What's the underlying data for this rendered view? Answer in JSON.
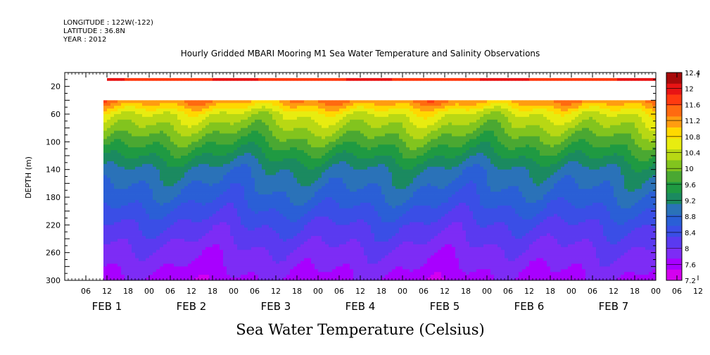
{
  "header": {
    "longitude": "LONGITUDE : 122W(-122)",
    "latitude": "LATITUDE : 36.8N",
    "year": "YEAR : 2012"
  },
  "chart_data": {
    "type": "heatmap",
    "title": "Hourly Gridded MBARI Mooring M1 Sea Water Temperature and Salinity Observations",
    "xlabel": "Sea Water Temperature (Celsius)",
    "ylabel": "DEPTH (m)",
    "x_axis": {
      "unit": "hours since 2012-02-01 00:00",
      "range": [
        0,
        168
      ],
      "hour_ticks": [
        "06",
        "12",
        "18",
        "00",
        "06",
        "12",
        "18",
        "00",
        "06",
        "12",
        "18",
        "00",
        "06",
        "12",
        "18",
        "00",
        "06",
        "12",
        "18",
        "00",
        "06",
        "12",
        "18",
        "00",
        "06",
        "12",
        "18",
        "00",
        "06",
        "12",
        "18"
      ],
      "day_labels": [
        "FEB  1",
        "FEB  2",
        "FEB  3",
        "FEB  4",
        "FEB  5",
        "FEB  6",
        "FEB  7"
      ]
    },
    "y_axis": {
      "range": [
        0,
        300
      ],
      "inverted": true,
      "tick_labels": [
        "20",
        "60",
        "100",
        "140",
        "180",
        "220",
        "260",
        "300"
      ]
    },
    "colorbar": {
      "levels": [
        "7.2",
        "7.6",
        "8",
        "8.4",
        "8.8",
        "9.2",
        "9.6",
        "10",
        "10.4",
        "10.8",
        "11.2",
        "11.6",
        "12",
        "12.4"
      ],
      "colors": [
        "#d400f0",
        "#a800ff",
        "#7d2cf5",
        "#5a3af0",
        "#3a4ee6",
        "#2a5fd6",
        "#2a72b8",
        "#1b8a60",
        "#1f9a42",
        "#4aa832",
        "#82c41e",
        "#b8d814",
        "#e8ec10",
        "#ffd800",
        "#ff9c10",
        "#ff6a10",
        "#ff3a10",
        "#e81414",
        "#a80a0a"
      ]
    },
    "surface_data_depth_m": 10,
    "profile_top_depth_m": 40,
    "data_start_hour": 11,
    "data_end_hour": 168,
    "description_series": [
      {
        "depth": 40,
        "temperature": 11.5
      },
      {
        "depth": 60,
        "temperature": 10.6
      },
      {
        "depth": 100,
        "temperature": 9.8
      },
      {
        "depth": 140,
        "temperature": 9.0
      },
      {
        "depth": 180,
        "temperature": 8.6
      },
      {
        "depth": 220,
        "temperature": 8.1
      },
      {
        "depth": 260,
        "temperature": 7.7
      },
      {
        "depth": 300,
        "temperature": 7.4
      }
    ]
  }
}
